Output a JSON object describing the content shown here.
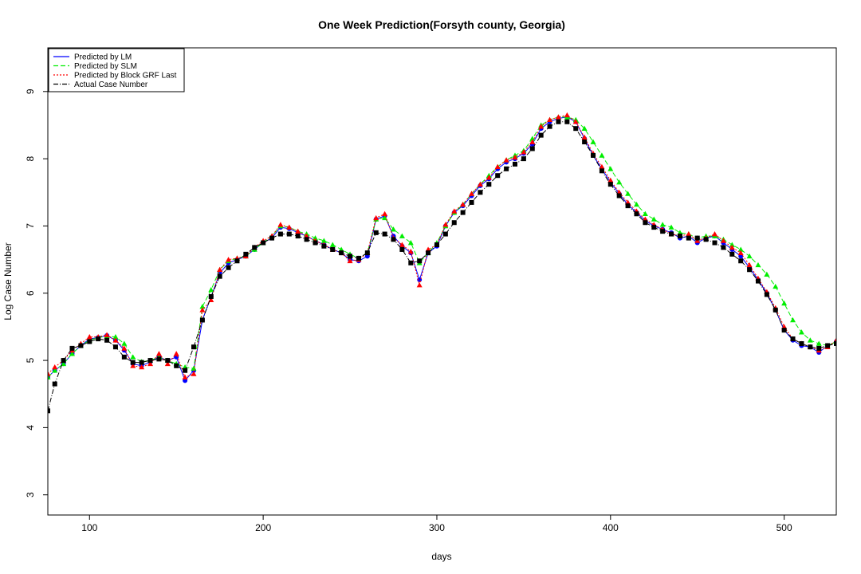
{
  "chart_data": {
    "type": "line",
    "title": "One Week Prediction(Forsyth county, Georgia)",
    "xlabel": "days",
    "ylabel": "Log Case Number",
    "xlim": [
      76,
      530
    ],
    "ylim": [
      2.7,
      9.65
    ],
    "x_ticks": [
      100,
      200,
      300,
      400,
      500
    ],
    "y_ticks": [
      3,
      4,
      5,
      6,
      7,
      8,
      9
    ],
    "legend_position": "top-left",
    "grid": false,
    "x": [
      76,
      80,
      85,
      90,
      95,
      100,
      105,
      110,
      115,
      120,
      125,
      130,
      135,
      140,
      145,
      150,
      155,
      160,
      165,
      170,
      175,
      180,
      185,
      190,
      195,
      200,
      205,
      210,
      215,
      220,
      225,
      230,
      235,
      240,
      245,
      250,
      255,
      260,
      265,
      270,
      275,
      280,
      285,
      290,
      295,
      300,
      305,
      310,
      315,
      320,
      325,
      330,
      335,
      340,
      345,
      350,
      355,
      360,
      365,
      370,
      375,
      380,
      385,
      390,
      395,
      400,
      405,
      410,
      415,
      420,
      425,
      430,
      435,
      440,
      445,
      450,
      455,
      460,
      465,
      470,
      475,
      480,
      485,
      490,
      495,
      500,
      505,
      510,
      515,
      520,
      525,
      530
    ],
    "series": [
      {
        "name": "Predicted by LM",
        "color": "#0000ff",
        "line_style": "solid",
        "marker": "circle",
        "values": [
          4.75,
          4.85,
          4.95,
          5.1,
          5.22,
          5.32,
          5.34,
          5.37,
          5.3,
          5.15,
          4.95,
          4.92,
          4.98,
          5.05,
          5.0,
          5.05,
          4.7,
          4.85,
          5.6,
          5.95,
          6.3,
          6.45,
          6.5,
          6.55,
          6.65,
          6.75,
          6.82,
          6.98,
          6.96,
          6.9,
          6.85,
          6.78,
          6.72,
          6.65,
          6.6,
          6.5,
          6.48,
          6.55,
          7.1,
          7.15,
          6.85,
          6.7,
          6.6,
          6.2,
          6.6,
          6.7,
          7.0,
          7.2,
          7.3,
          7.45,
          7.6,
          7.7,
          7.85,
          7.95,
          8.0,
          8.08,
          8.22,
          8.45,
          8.55,
          8.6,
          8.62,
          8.55,
          8.3,
          8.05,
          7.85,
          7.65,
          7.48,
          7.32,
          7.2,
          7.08,
          7.0,
          6.95,
          6.9,
          6.82,
          6.85,
          6.75,
          6.82,
          6.85,
          6.75,
          6.65,
          6.55,
          6.38,
          6.2,
          6.0,
          5.75,
          5.45,
          5.3,
          5.22,
          5.2,
          5.12,
          5.22,
          5.28
        ]
      },
      {
        "name": "Predicted by SLM",
        "color": "#00ee00",
        "line_style": "dashed",
        "marker": "triangle",
        "values": [
          4.75,
          4.85,
          4.95,
          5.1,
          5.22,
          5.3,
          5.34,
          5.36,
          5.35,
          5.25,
          5.05,
          4.98,
          5.0,
          5.05,
          5.0,
          4.95,
          4.9,
          4.88,
          5.8,
          6.05,
          6.35,
          6.48,
          6.52,
          6.55,
          6.65,
          6.75,
          6.85,
          7.0,
          6.98,
          6.92,
          6.88,
          6.82,
          6.78,
          6.72,
          6.65,
          6.58,
          6.52,
          6.6,
          7.1,
          7.12,
          6.95,
          6.85,
          6.75,
          6.45,
          6.6,
          6.75,
          7.0,
          7.2,
          7.32,
          7.48,
          7.62,
          7.75,
          7.88,
          7.98,
          8.05,
          8.12,
          8.3,
          8.5,
          8.58,
          8.62,
          8.62,
          8.58,
          8.45,
          8.25,
          8.05,
          7.85,
          7.65,
          7.48,
          7.32,
          7.18,
          7.1,
          7.02,
          6.98,
          6.9,
          6.88,
          6.82,
          6.85,
          6.85,
          6.8,
          6.72,
          6.65,
          6.55,
          6.42,
          6.28,
          6.1,
          5.85,
          5.6,
          5.42,
          5.3,
          5.25,
          5.22,
          5.28
        ]
      },
      {
        "name": "Predicted by Block GRF Last",
        "color": "#ff0000",
        "line_style": "dotted",
        "marker": "triangle",
        "values": [
          4.8,
          4.9,
          5.0,
          5.15,
          5.25,
          5.35,
          5.35,
          5.38,
          5.3,
          5.18,
          4.92,
          4.9,
          4.95,
          5.1,
          4.95,
          5.1,
          4.75,
          4.8,
          5.75,
          5.9,
          6.35,
          6.5,
          6.52,
          6.55,
          6.68,
          6.78,
          6.85,
          7.02,
          6.98,
          6.92,
          6.85,
          6.78,
          6.72,
          6.65,
          6.6,
          6.48,
          6.5,
          6.6,
          7.12,
          7.18,
          6.82,
          6.72,
          6.62,
          6.12,
          6.65,
          6.72,
          7.02,
          7.22,
          7.32,
          7.48,
          7.62,
          7.72,
          7.88,
          7.98,
          8.02,
          8.1,
          8.25,
          8.48,
          8.58,
          8.62,
          8.65,
          8.55,
          8.32,
          8.08,
          7.88,
          7.68,
          7.5,
          7.35,
          7.22,
          7.1,
          7.02,
          6.95,
          6.88,
          6.85,
          6.88,
          6.78,
          6.82,
          6.88,
          6.78,
          6.68,
          6.6,
          6.42,
          6.22,
          6.02,
          5.78,
          5.5,
          5.32,
          5.25,
          5.2,
          5.15,
          5.2,
          5.3
        ]
      },
      {
        "name": "Actual Case Number",
        "color": "#000000",
        "line_style": "dashdot",
        "marker": "square",
        "values": [
          4.25,
          4.65,
          5.0,
          5.18,
          5.22,
          5.28,
          5.32,
          5.3,
          5.2,
          5.05,
          4.97,
          4.97,
          5.0,
          5.02,
          5.0,
          4.92,
          4.85,
          5.2,
          5.6,
          5.95,
          6.25,
          6.38,
          6.48,
          6.58,
          6.68,
          6.75,
          6.82,
          6.88,
          6.88,
          6.85,
          6.8,
          6.75,
          6.7,
          6.65,
          6.6,
          6.55,
          6.52,
          6.6,
          6.9,
          6.88,
          6.8,
          6.65,
          6.45,
          6.48,
          6.6,
          6.72,
          6.88,
          7.05,
          7.2,
          7.35,
          7.5,
          7.62,
          7.75,
          7.85,
          7.92,
          8.0,
          8.15,
          8.35,
          8.48,
          8.55,
          8.55,
          8.45,
          8.25,
          8.05,
          7.82,
          7.62,
          7.45,
          7.3,
          7.18,
          7.05,
          6.98,
          6.92,
          6.88,
          6.85,
          6.82,
          6.82,
          6.8,
          6.75,
          6.68,
          6.58,
          6.48,
          6.35,
          6.18,
          5.98,
          5.75,
          5.45,
          5.32,
          5.25,
          5.2,
          5.18,
          5.22,
          5.25
        ]
      }
    ]
  }
}
